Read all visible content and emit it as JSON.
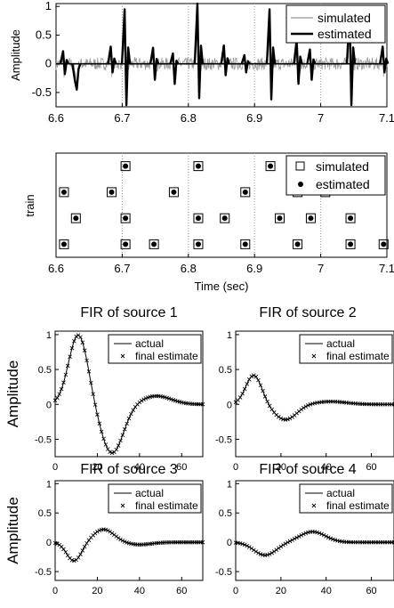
{
  "chart_data": [
    {
      "type": "line",
      "id": "signal",
      "xlabel": "",
      "ylabel": "Amplitude",
      "xlim": [
        6.6,
        7.1
      ],
      "ylim": [
        -0.75,
        1.05
      ],
      "xticks": [
        "6.6",
        "6.7",
        "6.8",
        "6.9",
        "7",
        "7.1"
      ],
      "yticks": [
        "-0.5",
        "0",
        "0.5",
        "1"
      ],
      "grid": "vertical dotted",
      "legend": "top-right",
      "series": [
        {
          "name": "simulated",
          "style": "thin gray line",
          "color": "#9a9a9a"
        },
        {
          "name": "estimated",
          "style": "thick black line",
          "color": "#000000",
          "spikes": [
            {
              "x": 6.612,
              "peak": 0.22,
              "trough": -0.18
            },
            {
              "x": 6.63,
              "peak": -0.3,
              "trough": -0.45
            },
            {
              "x": 6.684,
              "peak": 0.3,
              "trough": -0.15
            },
            {
              "x": 6.705,
              "peak": 0.95,
              "trough": -0.72
            },
            {
              "x": 6.748,
              "peak": 0.28,
              "trough": -0.28
            },
            {
              "x": 6.778,
              "peak": 0.18,
              "trough": -0.35
            },
            {
              "x": 6.815,
              "peak": 1.05,
              "trough": -0.6
            },
            {
              "x": 6.855,
              "peak": 0.32,
              "trough": -0.2
            },
            {
              "x": 6.886,
              "peak": 0.15,
              "trough": -0.15
            },
            {
              "x": 6.924,
              "peak": 0.95,
              "trough": -0.62
            },
            {
              "x": 6.965,
              "peak": 0.42,
              "trough": -0.35
            },
            {
              "x": 6.985,
              "peak": 0.25,
              "trough": -0.28
            },
            {
              "x": 7.045,
              "peak": 0.95,
              "trough": -0.72
            },
            {
              "x": 7.095,
              "peak": 0.3,
              "trough": -0.15
            }
          ]
        }
      ]
    },
    {
      "type": "scatter",
      "id": "train",
      "xlabel": "Time (sec)",
      "ylabel": "train",
      "xlim": [
        6.6,
        7.1
      ],
      "ylim": [
        0.5,
        4.5
      ],
      "xticks": [
        "6.6",
        "6.7",
        "6.8",
        "6.9",
        "7",
        "7.1"
      ],
      "grid": "vertical dotted",
      "legend": "top-right",
      "series": [
        {
          "name": "simulated",
          "marker": "open square"
        },
        {
          "name": "estimated",
          "marker": "filled circle"
        }
      ],
      "events": [
        {
          "train": 4,
          "times": [
            6.705,
            6.815,
            6.924
          ]
        },
        {
          "train": 3,
          "times": [
            6.612,
            6.684,
            6.778,
            6.886,
            6.965,
            7.007
          ]
        },
        {
          "train": 2,
          "times": [
            6.63,
            6.705,
            6.815,
            6.855,
            6.938,
            6.985,
            7.045
          ]
        },
        {
          "train": 1,
          "times": [
            6.612,
            6.705,
            6.748,
            6.815,
            6.886,
            6.965,
            7.045,
            7.095
          ]
        }
      ]
    },
    {
      "type": "line",
      "id": "fir1",
      "title": "FIR of source 1",
      "ylabel": "Amplitude",
      "xlim": [
        0,
        70
      ],
      "ylim": [
        -0.75,
        1.05
      ],
      "xticks": [
        "0",
        "20",
        "40",
        "60"
      ],
      "yticks": [
        "-0.5",
        "0",
        "0.5",
        "1"
      ],
      "legend": "top-right",
      "series": [
        {
          "name": "actual",
          "style": "line"
        },
        {
          "name": "final estimate",
          "style": "x markers"
        }
      ],
      "shape": {
        "a1": 1.0,
        "c1": 11,
        "s1": 6.5,
        "a2": -0.7,
        "c2": 27,
        "s2": 7.5,
        "a3": 0.12,
        "c3": 48,
        "s3": 10
      }
    },
    {
      "type": "line",
      "id": "fir2",
      "title": "FIR of source 2",
      "ylabel": "",
      "xlim": [
        0,
        70
      ],
      "ylim": [
        -0.75,
        1.05
      ],
      "xticks": [
        "0",
        "20",
        "40",
        "60"
      ],
      "yticks": [
        "-0.5",
        "0",
        "0.5",
        "1"
      ],
      "legend": "top-right",
      "series": [
        {
          "name": "actual",
          "style": "line"
        },
        {
          "name": "final estimate",
          "style": "x markers"
        }
      ],
      "shape": {
        "a1": 0.42,
        "c1": 8,
        "s1": 5,
        "a2": -0.22,
        "c2": 22,
        "s2": 7,
        "a3": 0.04,
        "c3": 42,
        "s3": 10
      }
    },
    {
      "type": "line",
      "id": "fir3",
      "title": "FIR of source 3",
      "ylabel": "Amplitude",
      "xlim": [
        0,
        70
      ],
      "ylim": [
        -0.65,
        1.05
      ],
      "xticks": [
        "0",
        "20",
        "40",
        "60"
      ],
      "yticks": [
        "-0.5",
        "0",
        "0.5",
        "1"
      ],
      "legend": "top-right",
      "series": [
        {
          "name": "actual",
          "style": "line"
        },
        {
          "name": "final estimate",
          "style": "x markers"
        }
      ],
      "shape": {
        "a1": -0.32,
        "c1": 9,
        "s1": 5,
        "a2": 0.22,
        "c2": 23,
        "s2": 7,
        "a3": -0.04,
        "c3": 40,
        "s3": 8
      }
    },
    {
      "type": "line",
      "id": "fir4",
      "title": "FIR of source 4",
      "ylabel": "",
      "xlim": [
        0,
        70
      ],
      "ylim": [
        -0.65,
        1.05
      ],
      "xticks": [
        "0",
        "20",
        "40",
        "60"
      ],
      "yticks": [
        "-0.5",
        "0",
        "0.5",
        "1"
      ],
      "legend": "top-right",
      "series": [
        {
          "name": "actual",
          "style": "line"
        },
        {
          "name": "final estimate",
          "style": "x markers"
        }
      ],
      "shape": {
        "a1": -0.22,
        "c1": 13,
        "s1": 7,
        "a2": 0.18,
        "c2": 34,
        "s2": 8,
        "a3": 0.0,
        "c3": 50,
        "s3": 10
      }
    }
  ]
}
